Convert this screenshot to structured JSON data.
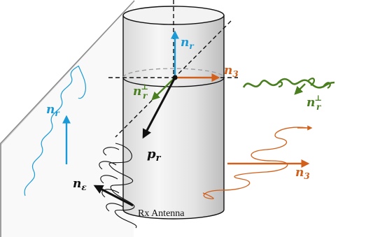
{
  "labels": {
    "nr_cylinder": "n",
    "nr_cylinder_sub": "r",
    "n3_right": "n",
    "n3_right_sub": "3",
    "nr_perp_left": "n",
    "nr_perp_left_sub": "r",
    "nr_perp_left_sup": "⊥",
    "nr_perp_right": "n",
    "nr_perp_right_sub": "r",
    "nr_perp_right_sup": "⊥",
    "nr_plane": "n",
    "nr_plane_sub": "r",
    "pr": "p",
    "pr_sub": "r",
    "n3_helix": "n",
    "n3_helix_sub": "3",
    "n_eps": "n",
    "n_eps_sub": "ε",
    "rx_antenna": "Rx Antenna"
  },
  "colors": {
    "blue": "#1a9ad6",
    "green": "#4a7f1f",
    "orange": "#d2601a",
    "black": "#111111",
    "gray": "#7a7a7a"
  }
}
